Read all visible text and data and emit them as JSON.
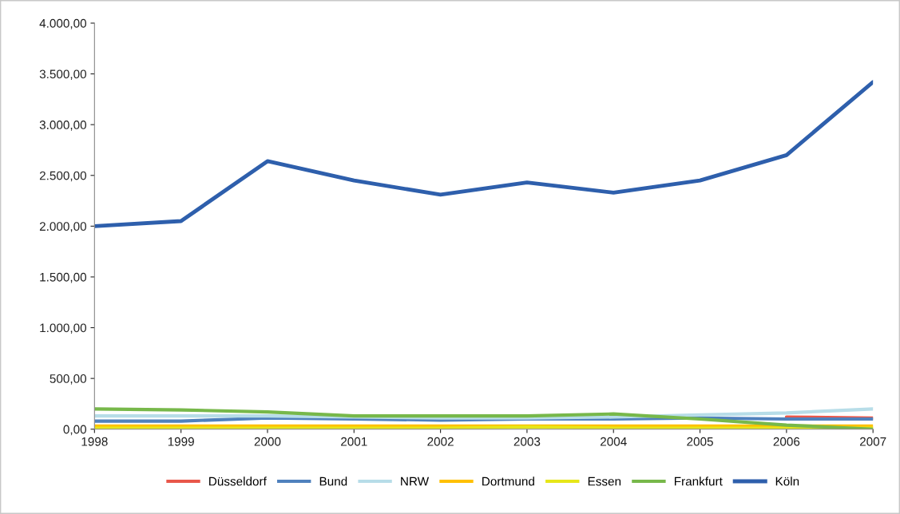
{
  "chart_data": {
    "type": "line",
    "categories": [
      "1998",
      "1999",
      "2000",
      "2001",
      "2002",
      "2003",
      "2004",
      "2005",
      "2006",
      "2007"
    ],
    "series": [
      {
        "name": "Düsseldorf",
        "color": "#e8574a",
        "values": [
          null,
          null,
          null,
          null,
          null,
          null,
          null,
          null,
          120,
          110
        ]
      },
      {
        "name": "Bund",
        "color": "#4f81bd",
        "values": [
          80,
          80,
          110,
          100,
          90,
          100,
          100,
          110,
          100,
          100
        ]
      },
      {
        "name": "NRW",
        "color": "#b7dde8",
        "values": [
          130,
          130,
          130,
          120,
          110,
          110,
          120,
          140,
          160,
          200
        ]
      },
      {
        "name": "Dortmund",
        "color": "#ffc000",
        "values": [
          30,
          30,
          30,
          30,
          30,
          30,
          30,
          30,
          30,
          30
        ]
      },
      {
        "name": "Essen",
        "color": "#e6e619",
        "values": [
          10,
          10,
          10,
          10,
          10,
          20,
          10,
          10,
          10,
          10
        ]
      },
      {
        "name": "Frankfurt",
        "color": "#77b84a",
        "values": [
          200,
          190,
          170,
          130,
          130,
          130,
          150,
          100,
          40,
          0
        ]
      },
      {
        "name": "Köln",
        "color": "#2e5fac",
        "values": [
          2000,
          2050,
          2640,
          2450,
          2310,
          2430,
          2330,
          2450,
          2700,
          3420
        ]
      }
    ],
    "ylim": [
      0,
      4000
    ],
    "yticks": [
      {
        "value": 0,
        "label": "0,00"
      },
      {
        "value": 500,
        "label": "500,00"
      },
      {
        "value": 1000,
        "label": "1.000,00"
      },
      {
        "value": 1500,
        "label": "1.500,00"
      },
      {
        "value": 2000,
        "label": "2.000,00"
      },
      {
        "value": 2500,
        "label": "2.500,00"
      },
      {
        "value": 3000,
        "label": "3.000,00"
      },
      {
        "value": 3500,
        "label": "3.500,00"
      },
      {
        "value": 4000,
        "label": "4.000,00"
      }
    ],
    "grid": false,
    "legend": "bottom",
    "marker": "none",
    "line_style": "solid"
  }
}
